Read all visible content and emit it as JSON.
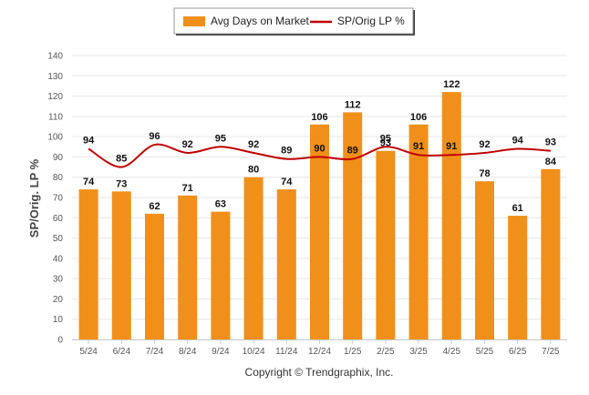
{
  "chart_data": {
    "type": "bar",
    "categories": [
      "5/24",
      "6/24",
      "7/24",
      "8/24",
      "9/24",
      "10/24",
      "11/24",
      "12/24",
      "1/25",
      "2/25",
      "3/25",
      "4/25",
      "5/25",
      "6/25",
      "7/25"
    ],
    "series": [
      {
        "name": "Avg Days on Market",
        "type": "bar",
        "color": "#f0901a",
        "values": [
          74,
          73,
          62,
          71,
          63,
          80,
          74,
          106,
          112,
          93,
          106,
          122,
          78,
          61,
          84
        ]
      },
      {
        "name": "SP/Orig LP %",
        "type": "line",
        "color": "#c00000",
        "values": [
          94,
          85,
          96,
          92,
          95,
          92,
          89,
          90,
          89,
          95,
          91,
          91,
          92,
          94,
          93
        ]
      }
    ],
    "ylabel": "SP/Orig. LP %",
    "ylim": [
      0,
      140
    ],
    "yticks": [
      0,
      10,
      20,
      30,
      40,
      50,
      60,
      70,
      80,
      90,
      100,
      110,
      120,
      130,
      140
    ],
    "grid": true,
    "legend_position": "top-center"
  },
  "footer": {
    "copyright": "Copyright © Trendgraphix, Inc."
  }
}
